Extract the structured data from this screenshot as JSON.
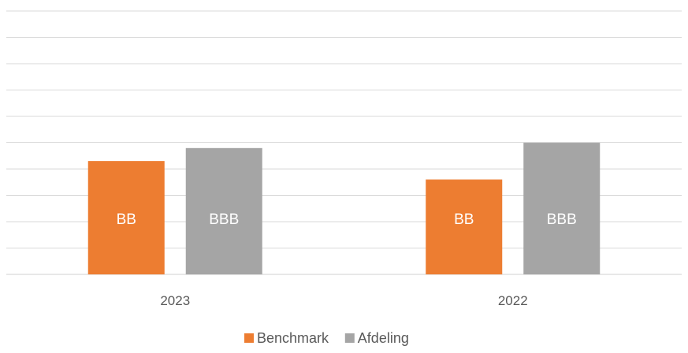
{
  "chart_data": {
    "type": "bar",
    "categories": [
      "2023",
      "2022"
    ],
    "series": [
      {
        "name": "Benchmark",
        "values": [
          4.3,
          3.6
        ],
        "labels": [
          "BB",
          "BB"
        ],
        "color": "#ED7D31"
      },
      {
        "name": "Afdeling",
        "values": [
          4.8,
          5.0
        ],
        "labels": [
          "BBB",
          "BBB"
        ],
        "color": "#A5A5A5"
      }
    ],
    "ylim": [
      0,
      10
    ],
    "grid": true,
    "legend_position": "bottom",
    "title": "",
    "xlabel": "",
    "ylabel": ""
  }
}
